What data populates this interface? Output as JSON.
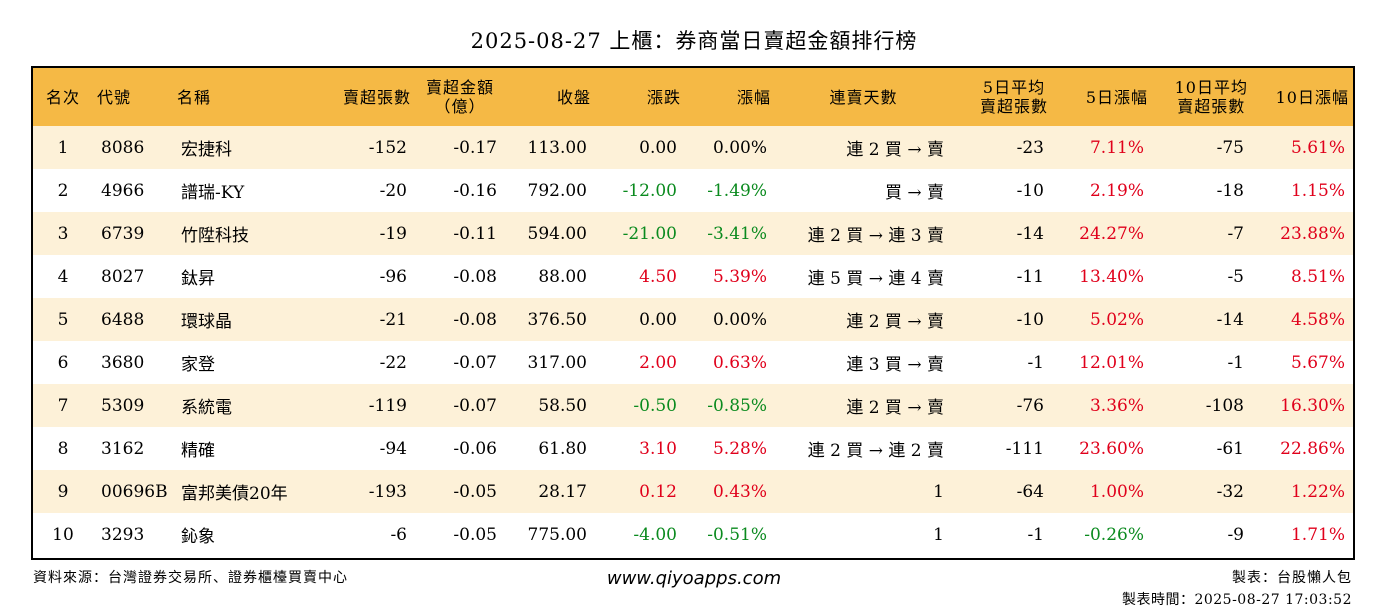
{
  "title": "2025-08-27 上櫃：券商當日賣超金額排行榜",
  "headers": {
    "rank": "名次",
    "code": "代號",
    "name": "名稱",
    "sell_lots": "賣超張數",
    "sell_amount_1": "賣超金額",
    "sell_amount_2": "（億）",
    "close": "收盤",
    "change": "漲跌",
    "change_pct": "漲幅",
    "streak": "連賣天數",
    "avg5_1": "5日平均",
    "avg5_2": "賣超張數",
    "pct5": "5日漲幅",
    "avg10_1": "10日平均",
    "avg10_2": "賣超張數",
    "pct10": "10日漲幅"
  },
  "rows": [
    {
      "rank": "1",
      "code": "8086",
      "name": "宏捷科",
      "lots": "-152",
      "amount": "-0.17",
      "close": "113.00",
      "change": "0.00",
      "change_pct": "0.00%",
      "streak": "連 2 買 → 賣",
      "avg5": "-23",
      "pct5": "7.11%",
      "avg10": "-75",
      "pct10": "5.61%"
    },
    {
      "rank": "2",
      "code": "4966",
      "name": "譜瑞-KY",
      "lots": "-20",
      "amount": "-0.16",
      "close": "792.00",
      "change": "-12.00",
      "change_pct": "-1.49%",
      "streak": "買 → 賣",
      "avg5": "-10",
      "pct5": "2.19%",
      "avg10": "-18",
      "pct10": "1.15%"
    },
    {
      "rank": "3",
      "code": "6739",
      "name": "竹陞科技",
      "lots": "-19",
      "amount": "-0.11",
      "close": "594.00",
      "change": "-21.00",
      "change_pct": "-3.41%",
      "streak": "連 2 買 → 連 3 賣",
      "avg5": "-14",
      "pct5": "24.27%",
      "avg10": "-7",
      "pct10": "23.88%"
    },
    {
      "rank": "4",
      "code": "8027",
      "name": "鈦昇",
      "lots": "-96",
      "amount": "-0.08",
      "close": "88.00",
      "change": "4.50",
      "change_pct": "5.39%",
      "streak": "連 5 買 → 連 4 賣",
      "avg5": "-11",
      "pct5": "13.40%",
      "avg10": "-5",
      "pct10": "8.51%"
    },
    {
      "rank": "5",
      "code": "6488",
      "name": "環球晶",
      "lots": "-21",
      "amount": "-0.08",
      "close": "376.50",
      "change": "0.00",
      "change_pct": "0.00%",
      "streak": "連 2 買 → 賣",
      "avg5": "-10",
      "pct5": "5.02%",
      "avg10": "-14",
      "pct10": "4.58%"
    },
    {
      "rank": "6",
      "code": "3680",
      "name": "家登",
      "lots": "-22",
      "amount": "-0.07",
      "close": "317.00",
      "change": "2.00",
      "change_pct": "0.63%",
      "streak": "連 3 買 → 賣",
      "avg5": "-1",
      "pct5": "12.01%",
      "avg10": "-1",
      "pct10": "5.67%"
    },
    {
      "rank": "7",
      "code": "5309",
      "name": "系統電",
      "lots": "-119",
      "amount": "-0.07",
      "close": "58.50",
      "change": "-0.50",
      "change_pct": "-0.85%",
      "streak": "連 2 買 → 賣",
      "avg5": "-76",
      "pct5": "3.36%",
      "avg10": "-108",
      "pct10": "16.30%"
    },
    {
      "rank": "8",
      "code": "3162",
      "name": "精確",
      "lots": "-94",
      "amount": "-0.06",
      "close": "61.80",
      "change": "3.10",
      "change_pct": "5.28%",
      "streak": "連 2 買 → 連 2 賣",
      "avg5": "-111",
      "pct5": "23.60%",
      "avg10": "-61",
      "pct10": "22.86%"
    },
    {
      "rank": "9",
      "code": "00696B",
      "name": "富邦美債20年",
      "lots": "-193",
      "amount": "-0.05",
      "close": "28.17",
      "change": "0.12",
      "change_pct": "0.43%",
      "streak": "1",
      "avg5": "-64",
      "pct5": "1.00%",
      "avg10": "-32",
      "pct10": "1.22%"
    },
    {
      "rank": "10",
      "code": "3293",
      "name": "鈊象",
      "lots": "-6",
      "amount": "-0.05",
      "close": "775.00",
      "change": "-4.00",
      "change_pct": "-0.51%",
      "streak": "1",
      "avg5": "-1",
      "pct5": "-0.26%",
      "avg10": "-9",
      "pct10": "1.71%"
    }
  ],
  "footer": {
    "source": "資料來源：台灣證券交易所、證券櫃檯買賣中心",
    "website": "www.qiyoapps.com",
    "maker": "製表：台股懶人包",
    "made_time": "製表時間：2025-08-27 17:03:52"
  },
  "colors": {
    "header_bg": "#f5b945",
    "stripe_bg": "#fdf1d8",
    "up": "#e0001b",
    "down": "#0a8a1e"
  }
}
